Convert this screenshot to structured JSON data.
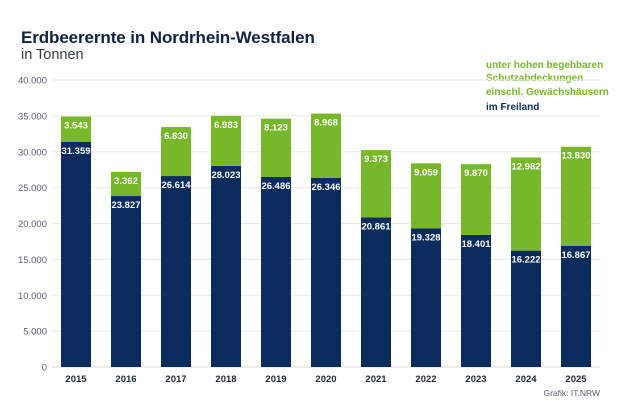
{
  "header": {
    "title": "Erdbeerernte in Nordrhein-Westfalen",
    "subtitle": "in Tonnen"
  },
  "legend": {
    "green_label_lines": [
      "unter hohen begehbaren",
      "Schutzabdeckungen",
      "einschl. Gewächshäusern"
    ],
    "navy_label": "im Freiland"
  },
  "credit": "Grafik: IT.NRW",
  "colors": {
    "freiland": "#0d2c5e",
    "geschuetzt": "#77b82a",
    "grid": "#e8e8e8"
  },
  "chart_data": {
    "type": "bar",
    "stacked": true,
    "title": "Erdbeerernte in Nordrhein-Westfalen",
    "subtitle": "in Tonnen",
    "xlabel": "",
    "ylabel": "",
    "categories": [
      "2015",
      "2016",
      "2017",
      "2018",
      "2019",
      "2020",
      "2021",
      "2022",
      "2023",
      "2024",
      "2025"
    ],
    "series": [
      {
        "name": "im Freiland",
        "color": "#0d2c5e",
        "values": [
          31359,
          23827,
          26614,
          28023,
          26486,
          26346,
          20861,
          19328,
          18401,
          16222,
          16867
        ],
        "labels": [
          "31.359",
          "23.827",
          "26.614",
          "28.023",
          "26.486",
          "26.346",
          "20.861",
          "19.328",
          "18.401",
          "16.222",
          "16.867"
        ]
      },
      {
        "name": "unter hohen begehbaren Schutzabdeckungen einschl. Gewächshäusern",
        "color": "#77b82a",
        "values": [
          3543,
          3362,
          6830,
          6983,
          8123,
          8968,
          9373,
          9059,
          9870,
          12982,
          13830
        ],
        "labels": [
          "3.543",
          "3.362",
          "6.830",
          "6.983",
          "8.123",
          "8.968",
          "9.373",
          "9.059",
          "9.870",
          "12.982",
          "13.830"
        ]
      }
    ],
    "ylim": [
      0,
      40000
    ],
    "yticks": [
      0,
      5000,
      10000,
      15000,
      20000,
      25000,
      30000,
      35000,
      40000
    ],
    "ytick_labels": [
      "0",
      "5.000",
      "10.000",
      "15.000",
      "20.000",
      "25.000",
      "30.000",
      "35.000",
      "40.000"
    ],
    "grid": true,
    "legend_position": "top-right"
  }
}
